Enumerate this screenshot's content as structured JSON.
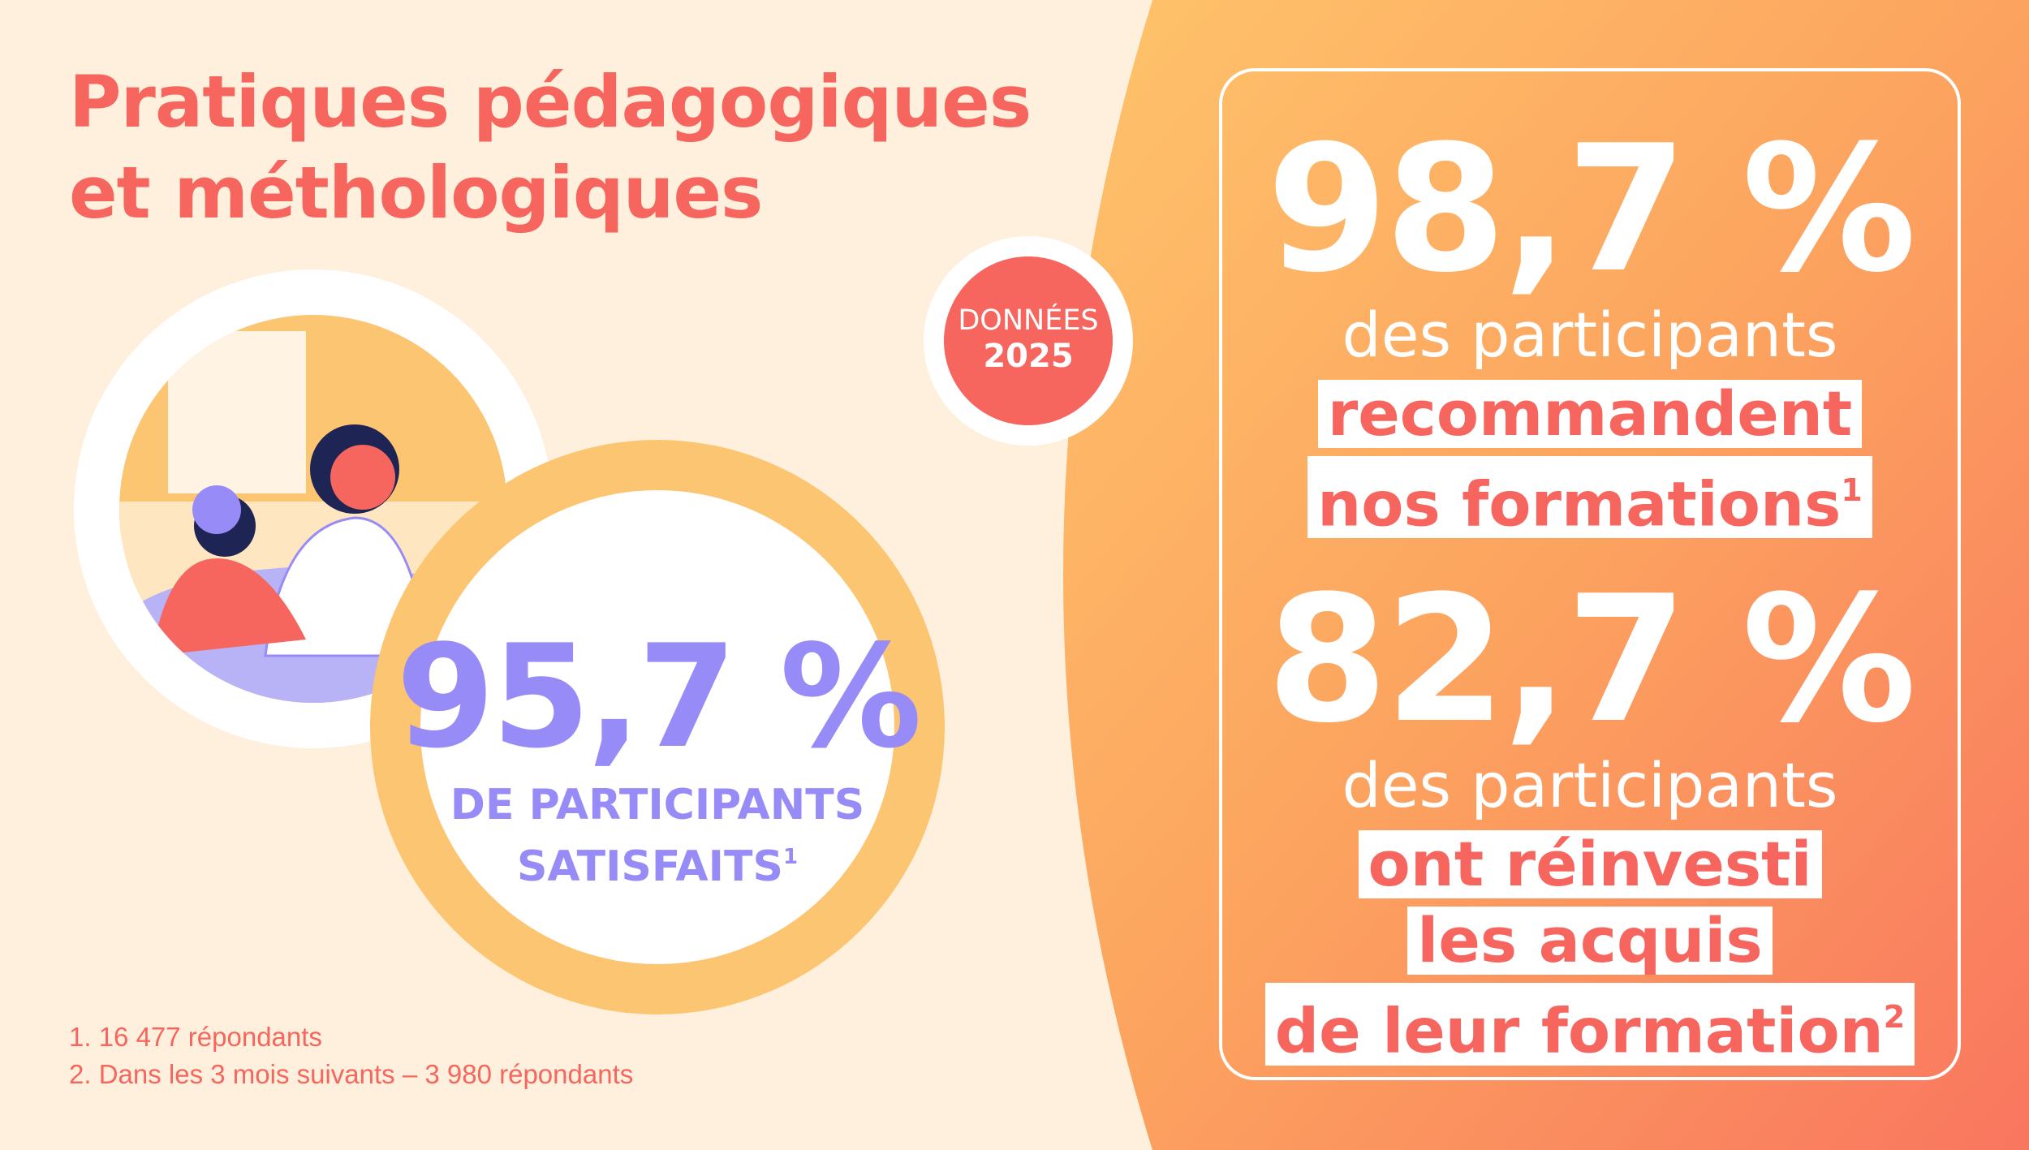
{
  "title": {
    "line1": "Pratiques pédagogiques",
    "line2": "et méthologiques"
  },
  "colors": {
    "background": "#fef0dc",
    "coral": "#f6665f",
    "orange": "#ffbd66",
    "purple": "#978bf7",
    "yellow": "#fcc572"
  },
  "badge": {
    "label": "DONNÉES",
    "year": "2025"
  },
  "satisfaction": {
    "value": "95,7 %",
    "line1": "DE PARTICIPANTS",
    "line2": "SATISFAITS",
    "note": "1"
  },
  "stats": [
    {
      "value": "98,7 %",
      "text": "des participants",
      "highlight": [
        "recommandent",
        "nos formations"
      ],
      "note": "1"
    },
    {
      "value": "82,7 %",
      "text": "des participants",
      "highlight": [
        "ont réinvesti",
        "les acquis",
        "de leur formation"
      ],
      "note": "2"
    }
  ],
  "footnotes": [
    "1. 16 477 répondants",
    "2. Dans les 3 mois suivants – 3 980 répondants"
  ],
  "illustration": "teacher-and-child-learning-illustration"
}
